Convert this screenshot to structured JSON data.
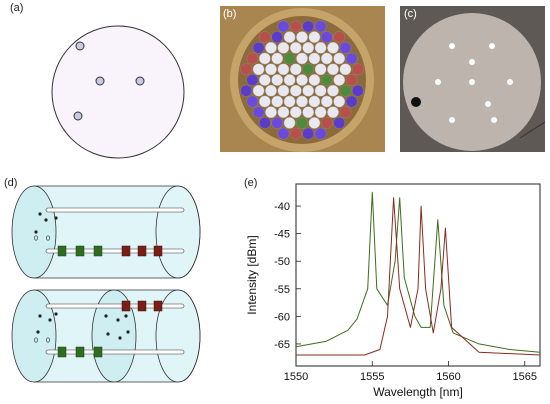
{
  "panels": {
    "a": {
      "label": "(a)"
    },
    "b": {
      "label": "(b)"
    },
    "c": {
      "label": "(c)"
    },
    "d": {
      "label": "(d)"
    },
    "e": {
      "label": "(e)"
    }
  },
  "chart_data": {
    "type": "line",
    "xlabel": "Wavelength [nm]",
    "ylabel": "Intensity [dBm]",
    "xlim": [
      1550,
      1566
    ],
    "ylim": [
      -69,
      -36
    ],
    "x_ticks": [
      1550,
      1555,
      1560,
      1565
    ],
    "y_ticks": [
      -40,
      -45,
      -50,
      -55,
      -60,
      -65
    ],
    "grid": false,
    "colors": {
      "green": "#3c6e1e",
      "red": "#8a2a1e"
    },
    "series": [
      {
        "color_key": "green",
        "x": [
          1550.0,
          1552.0,
          1553.4,
          1554.0,
          1554.7,
          1555.0,
          1555.3,
          1556.0,
          1556.5,
          1556.8,
          1557.1,
          1557.8,
          1558.2,
          1558.8,
          1559.3,
          1559.7,
          1560.3,
          1562.0,
          1564.0,
          1566.0
        ],
        "y": [
          -65.5,
          -64.5,
          -62.5,
          -60.5,
          -55.0,
          -37.5,
          -55.0,
          -58.0,
          -50.0,
          -38.5,
          -53.0,
          -60.0,
          -62.0,
          -62.0,
          -42.5,
          -58.0,
          -63.0,
          -65.0,
          -66.0,
          -66.5
        ]
      },
      {
        "color_key": "red",
        "x": [
          1550.0,
          1553.0,
          1554.5,
          1555.5,
          1556.0,
          1556.4,
          1556.8,
          1557.5,
          1558.0,
          1558.2,
          1558.5,
          1559.0,
          1559.5,
          1559.8,
          1560.2,
          1562.0,
          1566.0
        ],
        "y": [
          -67.0,
          -67.0,
          -67.0,
          -66.0,
          -60.0,
          -38.5,
          -55.0,
          -62.0,
          -55.0,
          -40.0,
          -55.0,
          -63.0,
          -55.0,
          -44.0,
          -62.0,
          -66.5,
          -67.0
        ]
      }
    ]
  }
}
